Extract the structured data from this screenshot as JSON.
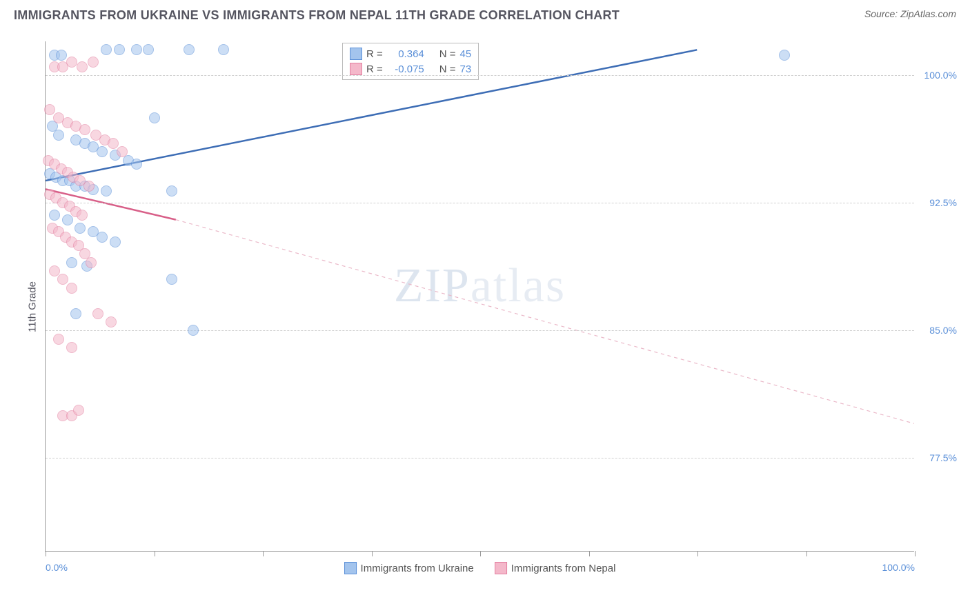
{
  "title": "IMMIGRANTS FROM UKRAINE VS IMMIGRANTS FROM NEPAL 11TH GRADE CORRELATION CHART",
  "source_label": "Source: ZipAtlas.com",
  "ylabel": "11th Grade",
  "watermark": "ZIPatlas",
  "chart": {
    "type": "scatter",
    "xlim": [
      0,
      100
    ],
    "ylim": [
      72,
      102
    ],
    "x_ticks": [
      0,
      12.5,
      25,
      37.5,
      50,
      62.5,
      75,
      87.5,
      100
    ],
    "x_tick_labels": {
      "0": "0.0%",
      "100": "100.0%"
    },
    "y_gridlines": [
      77.5,
      85.0,
      92.5,
      100.0
    ],
    "y_tick_labels": {
      "77.5": "77.5%",
      "85.0": "85.0%",
      "92.5": "92.5%",
      "100.0": "100.0%"
    },
    "background_color": "#ffffff",
    "grid_color": "#d0d0d0",
    "axis_color": "#999999",
    "tick_label_color": "#5a8fd8",
    "marker_radius": 8,
    "marker_opacity": 0.55,
    "series": [
      {
        "name": "Immigrants from Ukraine",
        "color_fill": "#a3c4ed",
        "color_stroke": "#5a8fd8",
        "R": "0.364",
        "N": "45",
        "trend": {
          "x1": 0,
          "y1": 93.8,
          "x2": 75,
          "y2": 101.5,
          "stroke": "#3d6db5",
          "width": 2.5,
          "dash": "none"
        },
        "points": [
          [
            1.0,
            101.2
          ],
          [
            1.8,
            101.2
          ],
          [
            7.0,
            101.5
          ],
          [
            8.5,
            101.5
          ],
          [
            10.5,
            101.5
          ],
          [
            11.8,
            101.5
          ],
          [
            16.5,
            101.5
          ],
          [
            20.5,
            101.5
          ],
          [
            85,
            101.2
          ],
          [
            0.8,
            97.0
          ],
          [
            1.5,
            96.5
          ],
          [
            3.5,
            96.2
          ],
          [
            4.5,
            96.0
          ],
          [
            5.5,
            95.8
          ],
          [
            6.5,
            95.5
          ],
          [
            8.0,
            95.3
          ],
          [
            9.5,
            95.0
          ],
          [
            10.5,
            94.8
          ],
          [
            12.5,
            97.5
          ],
          [
            0.5,
            94.2
          ],
          [
            1.2,
            94.0
          ],
          [
            2.0,
            93.8
          ],
          [
            2.8,
            93.8
          ],
          [
            3.5,
            93.5
          ],
          [
            4.5,
            93.5
          ],
          [
            5.5,
            93.3
          ],
          [
            7.0,
            93.2
          ],
          [
            14.5,
            93.2
          ],
          [
            1.0,
            91.8
          ],
          [
            2.5,
            91.5
          ],
          [
            4.0,
            91.0
          ],
          [
            5.5,
            90.8
          ],
          [
            6.5,
            90.5
          ],
          [
            8.0,
            90.2
          ],
          [
            3.0,
            89.0
          ],
          [
            4.8,
            88.8
          ],
          [
            3.5,
            86.0
          ],
          [
            14.5,
            88.0
          ],
          [
            17.0,
            85.0
          ]
        ]
      },
      {
        "name": "Immigrants from Nepal",
        "color_fill": "#f4b8ca",
        "color_stroke": "#e37fa0",
        "R": "-0.075",
        "N": "73",
        "trend_solid": {
          "x1": 0,
          "y1": 93.3,
          "x2": 15,
          "y2": 91.5,
          "stroke": "#d85f88",
          "width": 2.5,
          "dash": "none"
        },
        "trend_dash": {
          "x1": 15,
          "y1": 91.5,
          "x2": 100,
          "y2": 79.5,
          "stroke": "#eab8c8",
          "width": 1.2,
          "dash": "5,5"
        },
        "points": [
          [
            1.0,
            100.5
          ],
          [
            2.0,
            100.5
          ],
          [
            3.0,
            100.8
          ],
          [
            4.2,
            100.5
          ],
          [
            5.5,
            100.8
          ],
          [
            0.5,
            98.0
          ],
          [
            1.5,
            97.5
          ],
          [
            2.5,
            97.2
          ],
          [
            3.5,
            97.0
          ],
          [
            4.5,
            96.8
          ],
          [
            5.8,
            96.5
          ],
          [
            6.8,
            96.2
          ],
          [
            7.8,
            96.0
          ],
          [
            8.8,
            95.5
          ],
          [
            0.3,
            95.0
          ],
          [
            1.0,
            94.8
          ],
          [
            1.8,
            94.5
          ],
          [
            2.5,
            94.3
          ],
          [
            3.2,
            94.0
          ],
          [
            4.0,
            93.8
          ],
          [
            5.0,
            93.5
          ],
          [
            0.5,
            93.0
          ],
          [
            1.2,
            92.8
          ],
          [
            2.0,
            92.5
          ],
          [
            2.8,
            92.3
          ],
          [
            3.5,
            92.0
          ],
          [
            4.2,
            91.8
          ],
          [
            0.8,
            91.0
          ],
          [
            1.5,
            90.8
          ],
          [
            2.3,
            90.5
          ],
          [
            3.0,
            90.2
          ],
          [
            3.8,
            90.0
          ],
          [
            4.5,
            89.5
          ],
          [
            5.2,
            89.0
          ],
          [
            1.0,
            88.5
          ],
          [
            2.0,
            88.0
          ],
          [
            3.0,
            87.5
          ],
          [
            6.0,
            86.0
          ],
          [
            7.5,
            85.5
          ],
          [
            1.5,
            84.5
          ],
          [
            3.0,
            84.0
          ],
          [
            2.0,
            80.0
          ],
          [
            3.0,
            80.0
          ],
          [
            3.8,
            80.3
          ]
        ]
      }
    ]
  },
  "legend_top": {
    "rows": [
      {
        "swatch_fill": "#a3c4ed",
        "swatch_stroke": "#5a8fd8",
        "r_label": "R =",
        "r_val": "0.364",
        "n_label": "N =",
        "n_val": "45"
      },
      {
        "swatch_fill": "#f4b8ca",
        "swatch_stroke": "#e37fa0",
        "r_label": "R =",
        "r_val": "-0.075",
        "n_label": "N =",
        "n_val": "73"
      }
    ]
  },
  "bottom_legend": [
    {
      "swatch_fill": "#a3c4ed",
      "swatch_stroke": "#5a8fd8",
      "label": "Immigrants from Ukraine"
    },
    {
      "swatch_fill": "#f4b8ca",
      "swatch_stroke": "#e37fa0",
      "label": "Immigrants from Nepal"
    }
  ]
}
